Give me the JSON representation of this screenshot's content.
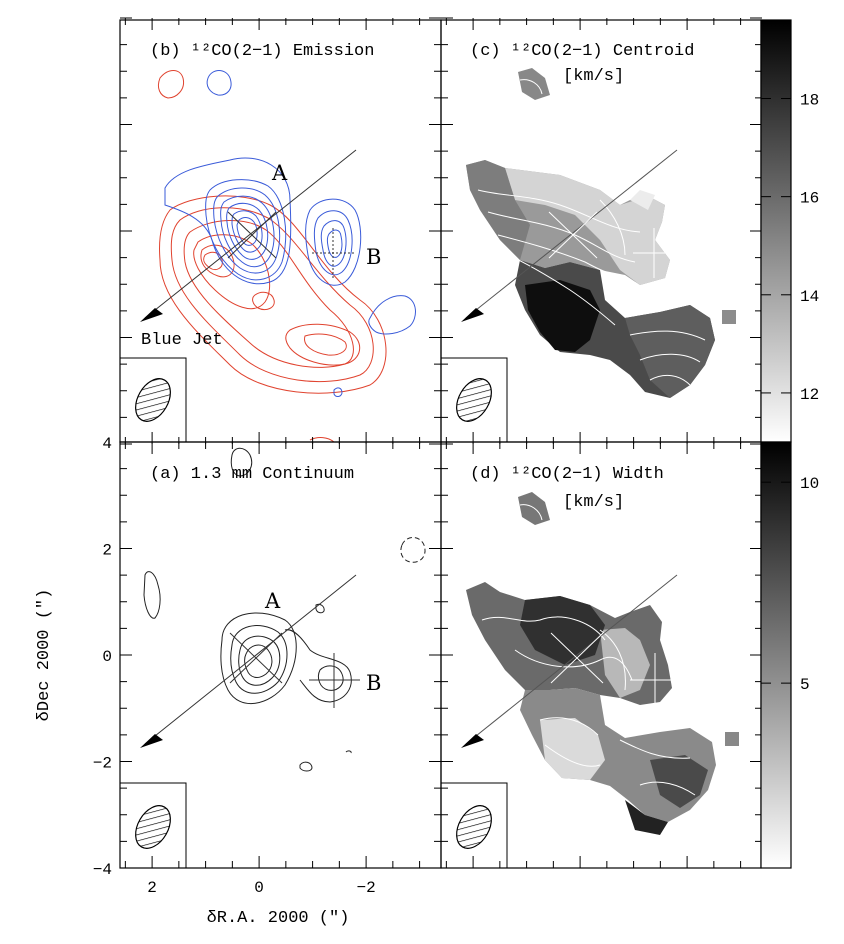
{
  "chart_data": [
    {
      "type": "contour",
      "panel": "b",
      "title": "(b) ¹²CO(2−1) Emission",
      "series": [
        {
          "color": "#3a5bd9"
        },
        {
          "color": "#e0432f"
        }
      ],
      "sources": [
        {
          "label": "A",
          "x": 0,
          "y": 0
        },
        {
          "label": "B",
          "x": -1.5,
          "y": -0.5
        }
      ],
      "annotation": "Blue Jet"
    },
    {
      "type": "heatmap",
      "panel": "c",
      "title": "(c) ¹²CO(2−1) Centroid",
      "unit": "[km/s]",
      "colorbar": {
        "range": [
          11,
          19.6
        ],
        "ticks": [
          12,
          14,
          16,
          18
        ]
      }
    },
    {
      "type": "contour",
      "panel": "a",
      "title": "(a) 1.3 mm Continuum",
      "xlabel": "δR.A. 2000 (″)",
      "ylabel": "δDec 2000 (″)",
      "xlim": [
        2.6,
        -3.4
      ],
      "ylim": [
        -4,
        4
      ],
      "xticks": [
        "2",
        "0",
        "−2"
      ],
      "yticks": [
        "−4",
        "−2",
        "0",
        "2",
        "4"
      ],
      "sources": [
        {
          "label": "A",
          "x": 0,
          "y": 0
        },
        {
          "label": "B",
          "x": -1.5,
          "y": -0.5
        }
      ]
    },
    {
      "type": "heatmap",
      "panel": "d",
      "title": "(d) ¹²CO(2−1) Width",
      "unit": "[km/s]",
      "colorbar": {
        "range": [
          0.4,
          11
        ],
        "ticks": [
          5,
          10
        ]
      }
    }
  ]
}
